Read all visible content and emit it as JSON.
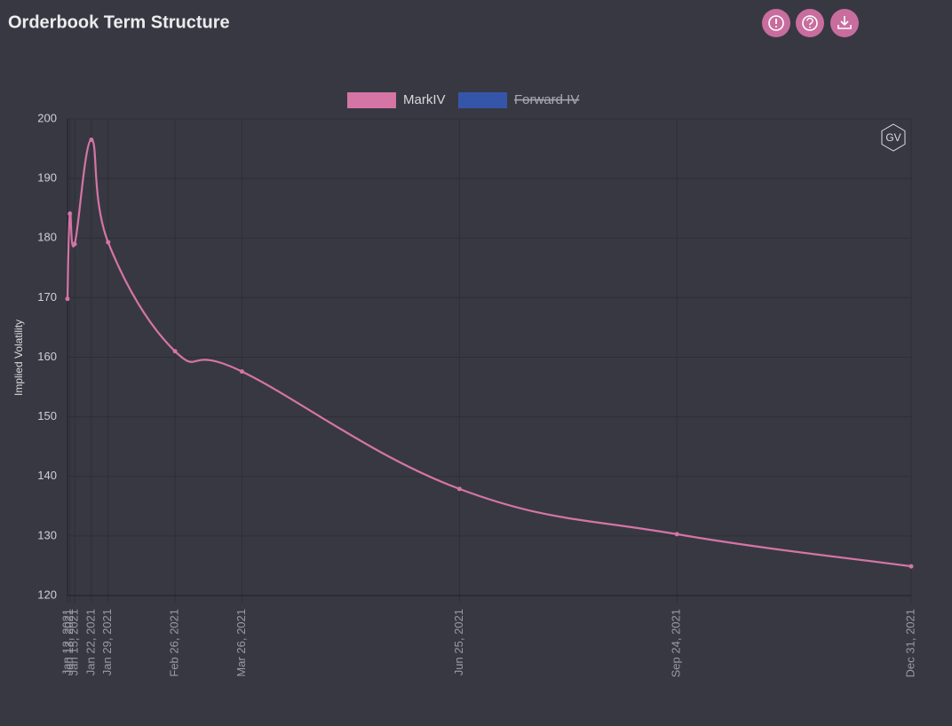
{
  "header": {
    "title": "Orderbook Term Structure"
  },
  "chart_data": {
    "type": "line",
    "watermark": "GV",
    "y_label": "Implied Volatility",
    "x": [
      "Jan 12, 2021",
      "Jan 13, 2021",
      "Jan 15, 2021",
      "Jan 22, 2021",
      "Jan 29, 2021",
      "Feb 26, 2021",
      "Mar 26, 2021",
      "Jun 25, 2021",
      "Sep 24, 2021",
      "Dec 31, 2021"
    ],
    "xlim": [
      "Jan 12, 2021",
      "Dec 31, 2021"
    ],
    "xticks": [
      "Jan 12, 2021",
      "Jan 13, 2021",
      "Jan 15, 2021",
      "Jan 22, 2021",
      "Jan 29, 2021",
      "Feb 26, 2021",
      "Mar 26, 2021",
      "Jun 25, 2021",
      "Sep 24, 2021",
      "Dec 31, 2021"
    ],
    "ylim": [
      120,
      200
    ],
    "yticks": [
      120,
      130,
      140,
      150,
      160,
      170,
      180,
      190,
      200
    ],
    "grid": true,
    "series": [
      {
        "name": "MarkIV",
        "color": "#d475a6",
        "hidden": false,
        "values": [
          169.8,
          184.1,
          179,
          196.5,
          179.3,
          161,
          157.6,
          137.9,
          130.3,
          124.9
        ]
      },
      {
        "name": "Forward IV",
        "color": "#3556a8",
        "hidden": true,
        "values": [
          null,
          null,
          null,
          null,
          null,
          null,
          null,
          null,
          null,
          null
        ]
      }
    ]
  }
}
